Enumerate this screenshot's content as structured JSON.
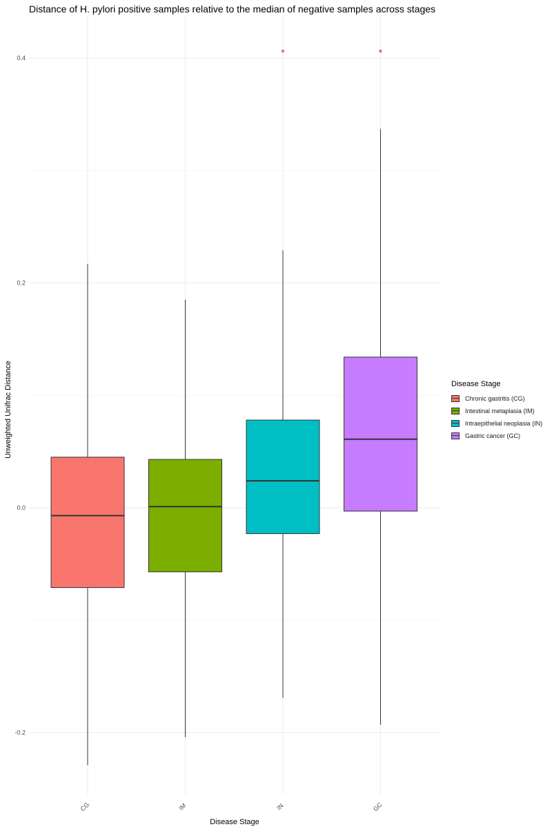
{
  "chart_data": {
    "type": "box",
    "title": "Distance of H. pylori positive samples relative to the median of negative samples across stages",
    "xlabel": "Disease Stage",
    "ylabel": "Unweighted Unifrac Distance",
    "ylim": [
      -0.245,
      0.45
    ],
    "yticks": [
      -0.2,
      0.0,
      0.2,
      0.4
    ],
    "ytick_labels": [
      "-0.2",
      "0.0",
      "0.2",
      "0.4"
    ],
    "grid": true,
    "legend_position": "right",
    "legend_title": "Disease Stage",
    "categories": [
      "CG",
      "IM",
      "IN",
      "GC"
    ],
    "series": [
      {
        "name": "Chronic gastritis (CG)",
        "color": "#F8766D",
        "whisker_low": -0.229,
        "q1": -0.071,
        "median": -0.007,
        "q3": 0.045,
        "whisker_high": 0.217,
        "significance": ""
      },
      {
        "name": "Intestinal metaplasia (IM)",
        "color": "#7CAE00",
        "whisker_low": -0.204,
        "q1": -0.057,
        "median": 0.001,
        "q3": 0.043,
        "whisker_high": 0.185,
        "significance": ""
      },
      {
        "name": "Intraepithelial neoplasia (IN)",
        "color": "#00BFC4",
        "whisker_low": -0.169,
        "q1": -0.023,
        "median": 0.024,
        "q3": 0.078,
        "whisker_high": 0.229,
        "significance": "*"
      },
      {
        "name": "Gastric cancer (GC)",
        "color": "#C77CFF",
        "whisker_low": -0.193,
        "q1": -0.003,
        "median": 0.061,
        "q3": 0.134,
        "whisker_high": 0.337,
        "significance": "*"
      }
    ]
  }
}
